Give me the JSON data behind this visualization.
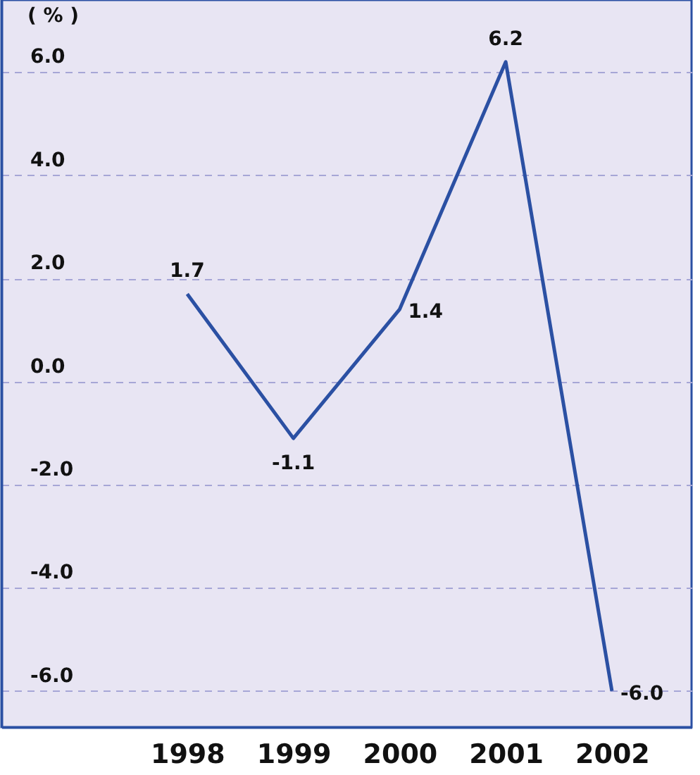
{
  "chart_data": {
    "type": "line",
    "ylabel": "( % )",
    "x": [
      1998,
      1999,
      2000,
      2001,
      2002
    ],
    "series": [
      {
        "color": "#2b50a3",
        "values": [
          1.7,
          -1.1,
          1.4,
          6.2,
          -6.0
        ],
        "value_labels": [
          "1.7",
          "-1.1",
          "1.4",
          "6.2",
          "-6.0"
        ]
      }
    ],
    "xlim": [
      1996.25,
      2002.75
    ],
    "xticks": [
      1998,
      1999,
      2000,
      2001,
      2002
    ],
    "ylim": [
      -6.7,
      7.4
    ],
    "yticks": [
      {
        "value": -6,
        "label": "-6.0"
      },
      {
        "value": -4,
        "label": "-4.0"
      },
      {
        "value": -2,
        "label": "-2.0"
      },
      {
        "value": 0,
        "label": "0.0"
      },
      {
        "value": 2,
        "label": "2.0"
      },
      {
        "value": 4,
        "label": "4.0"
      },
      {
        "value": 6,
        "label": "6.0"
      }
    ],
    "grid": "y",
    "marker": "none",
    "line_style": "solid"
  }
}
